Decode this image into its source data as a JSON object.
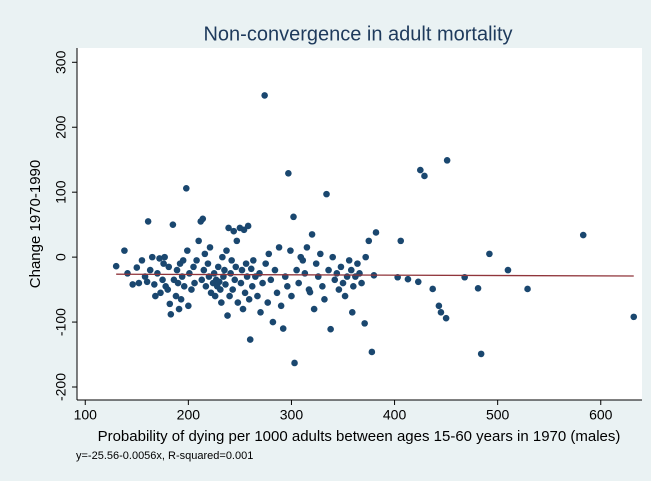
{
  "chart_data": {
    "type": "scatter",
    "title": "Non-convergence in adult mortality",
    "xlabel": "Probability of dying per 1000 adults between ages 15-60 years in 1970 (males)",
    "ylabel": "Change 1970-1990",
    "note": "y=-25.56-0.0056x, R-squared=0.001",
    "color": "#1a476f",
    "grid": false,
    "xlim": [
      92,
      640
    ],
    "xticks": [
      100,
      200,
      300,
      400,
      500,
      600
    ],
    "ylim": [
      -220,
      322
    ],
    "yticks": [
      -200,
      -100,
      0,
      100,
      200,
      300
    ],
    "fit_line": {
      "color": "#90353b",
      "x": [
        130,
        632
      ],
      "y": [
        -26.29,
        -29.1
      ]
    },
    "x": [
      130,
      138,
      141,
      146,
      150,
      152,
      155,
      158,
      160,
      161,
      163,
      165,
      167,
      168,
      170,
      172,
      173,
      175,
      176,
      177,
      178,
      180,
      181,
      182,
      183,
      185,
      186,
      188,
      189,
      190,
      191,
      192,
      193,
      194,
      195,
      196,
      198,
      199,
      200,
      201,
      203,
      205,
      206,
      208,
      210,
      212,
      213,
      214,
      215,
      216,
      217,
      219,
      220,
      221,
      222,
      224,
      225,
      226,
      227,
      228,
      229,
      230,
      231,
      232,
      233,
      234,
      235,
      236,
      237,
      238,
      239,
      240,
      241,
      242,
      243,
      244,
      245,
      246,
      247,
      248,
      250,
      251,
      252,
      253,
      254,
      255,
      256,
      257,
      258,
      259,
      260,
      261,
      262,
      263,
      265,
      267,
      269,
      270,
      272,
      274,
      275,
      277,
      278,
      280,
      282,
      284,
      286,
      288,
      290,
      292,
      294,
      296,
      297,
      299,
      300,
      302,
      303,
      305,
      307,
      309,
      311,
      313,
      315,
      317,
      318,
      320,
      322,
      324,
      326,
      328,
      330,
      332,
      334,
      336,
      338,
      340,
      342,
      344,
      346,
      348,
      350,
      352,
      354,
      356,
      358,
      359,
      360,
      362,
      364,
      366,
      368,
      371,
      372,
      375,
      378,
      380,
      382,
      403,
      406,
      413,
      423,
      425,
      429,
      437,
      443,
      445,
      450,
      451,
      468,
      481,
      484,
      492,
      510,
      529,
      583,
      632
    ],
    "y": [
      -14,
      10,
      -25,
      -42,
      -16,
      -40,
      -5,
      -30,
      -38,
      55,
      -20,
      0,
      -42,
      -60,
      -25,
      -2,
      -55,
      -35,
      -10,
      0,
      -45,
      -50,
      -15,
      -72,
      -88,
      50,
      -35,
      -60,
      -20,
      -40,
      -80,
      -10,
      -65,
      -30,
      -5,
      -45,
      106,
      10,
      -75,
      -25,
      -50,
      -15,
      -40,
      -5,
      25,
      55,
      -35,
      59,
      -20,
      5,
      -45,
      -10,
      -30,
      15,
      -55,
      -40,
      -25,
      -60,
      -35,
      -45,
      -15,
      -38,
      -50,
      -70,
      0,
      -30,
      -20,
      -42,
      10,
      -90,
      45,
      -60,
      -25,
      -5,
      -50,
      40,
      -35,
      -15,
      25,
      -70,
      45,
      -40,
      -20,
      -80,
      42,
      -55,
      -10,
      -30,
      48,
      -65,
      -127,
      -18,
      -45,
      -5,
      -30,
      -60,
      -25,
      -85,
      -40,
      249,
      -10,
      -70,
      5,
      -35,
      -100,
      -20,
      -55,
      15,
      -75,
      -110,
      -30,
      -45,
      129,
      10,
      -60,
      62,
      -163,
      -20,
      -40,
      0,
      -5,
      -25,
      15,
      -50,
      -54,
      35,
      -80,
      -10,
      -30,
      5,
      -45,
      -65,
      97,
      -20,
      -111,
      0,
      -35,
      -25,
      -50,
      -15,
      -40,
      -60,
      -30,
      -5,
      -20,
      -85,
      -45,
      -30,
      -10,
      -25,
      -40,
      -102,
      0,
      25,
      -146,
      -28,
      38,
      -31,
      25,
      -34,
      -38,
      134,
      125,
      -49,
      -75,
      -85,
      -94,
      149,
      -31,
      -48,
      -149,
      5,
      -20,
      -49,
      34,
      -92
    ]
  }
}
